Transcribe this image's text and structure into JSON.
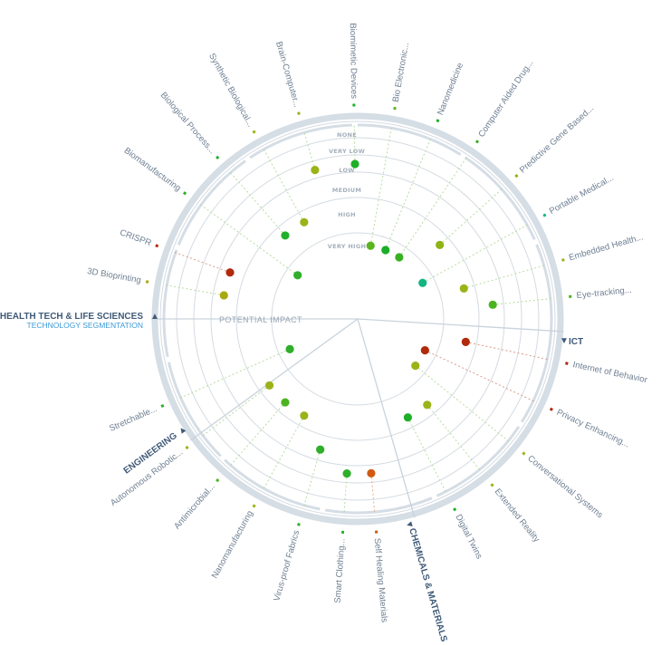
{
  "title": "",
  "center_label": "POTENTIAL IMPACT",
  "subtitle": "TECHNOLOGY SEGMENTATION",
  "rings": [
    "NONE",
    "VERY LOW",
    "LOW",
    "MEDIUM",
    "HIGH",
    "VERY HIGH"
  ],
  "sectors": [
    {
      "name": "HEALTH TECH & LIFE SCIENCES",
      "marker": "▲",
      "subtitle": "TECHNOLOGY SEGMENTATION"
    },
    {
      "name": "ICT",
      "marker": "▼"
    },
    {
      "name": "CHEMICALS & MATERIALS",
      "marker": "▼"
    },
    {
      "name": "ENGINEERING",
      "marker": "▲"
    }
  ],
  "colors": {
    "ring": "#d4dbe2",
    "outer_band": "#d5dde5",
    "label": "#6e7f92",
    "sector_label": "#3f5a78",
    "subtitle": "#3a9ad8"
  },
  "chart_data": {
    "type": "scatter",
    "scale": [
      "NONE",
      "VERY LOW",
      "LOW",
      "MEDIUM",
      "HIGH",
      "VERY HIGH"
    ],
    "technologies": [
      {
        "label": "3D Bioprinting",
        "sector": "HEALTH TECH & LIFE SCIENCES",
        "impact": "MEDIUM",
        "color": "#a8a910"
      },
      {
        "label": "CRISPR",
        "sector": "HEALTH TECH & LIFE SCIENCES",
        "impact": "MEDIUM",
        "color": "#b12a0c"
      },
      {
        "label": "Biomanufacturing",
        "sector": "HEALTH TECH & LIFE SCIENCES",
        "impact": "VERY HIGH",
        "color": "#2faf2a"
      },
      {
        "label": "Biological Process...",
        "sector": "HEALTH TECH & LIFE SCIENCES",
        "impact": "HIGH",
        "color": "#21b02c"
      },
      {
        "label": "Synthetic Biological...",
        "sector": "HEALTH TECH & LIFE SCIENCES",
        "impact": "HIGH",
        "color": "#9bb319"
      },
      {
        "label": "Brain-Computer...",
        "sector": "HEALTH TECH & LIFE SCIENCES",
        "impact": "LOW",
        "color": "#9bb319"
      },
      {
        "label": "Biomimetic Devices",
        "sector": "HEALTH TECH & LIFE SCIENCES",
        "impact": "LOW",
        "color": "#1fae28"
      },
      {
        "label": "Bio Electronic...",
        "sector": "HEALTH TECH & LIFE SCIENCES",
        "impact": "VERY HIGH",
        "color": "#5cb320"
      },
      {
        "label": "Nanomedicine",
        "sector": "HEALTH TECH & LIFE SCIENCES",
        "impact": "VERY HIGH",
        "color": "#1aae27"
      },
      {
        "label": "Computer Aided Drug...",
        "sector": "HEALTH TECH & LIFE SCIENCES",
        "impact": "VERY HIGH",
        "color": "#37b021"
      },
      {
        "label": "Predictive Gene Based...",
        "sector": "HEALTH TECH & LIFE SCIENCES",
        "impact": "HIGH",
        "color": "#8fb315"
      },
      {
        "label": "Portable Medical...",
        "sector": "HEALTH TECH & LIFE SCIENCES",
        "impact": "VERY HIGH",
        "color": "#14b582"
      },
      {
        "label": "Embedded Health...",
        "sector": "HEALTH TECH & LIFE SCIENCES",
        "impact": "HIGH",
        "color": "#9bb319"
      },
      {
        "label": "Eye-tracking...",
        "sector": "ICT",
        "impact": "MEDIUM",
        "color": "#4cb320"
      },
      {
        "label": "Internet of Behavior",
        "sector": "ICT",
        "impact": "HIGH",
        "color": "#b12a0c"
      },
      {
        "label": "Privacy Enhancing...",
        "sector": "ICT",
        "impact": "VERY HIGH",
        "color": "#b12a0c"
      },
      {
        "label": "Conversational Systems",
        "sector": "ICT",
        "impact": "VERY HIGH",
        "color": "#9bb319"
      },
      {
        "label": "Extended Reality",
        "sector": "ICT",
        "impact": "HIGH",
        "color": "#9bb319"
      },
      {
        "label": "Digital Twins",
        "sector": "ICT",
        "impact": "HIGH",
        "color": "#1fae28"
      },
      {
        "label": "Self Healing Materials",
        "sector": "CHEMICALS & MATERIALS",
        "impact": "LOW",
        "color": "#d15a12"
      },
      {
        "label": "Smart Clothing...",
        "sector": "CHEMICALS & MATERIALS",
        "impact": "LOW",
        "color": "#2faf2a"
      },
      {
        "label": "Virus-proof Fabrics",
        "sector": "CHEMICALS & MATERIALS",
        "impact": "MEDIUM",
        "color": "#2faf2a"
      },
      {
        "label": "Nanomanufacturing",
        "sector": "CHEMICALS & MATERIALS",
        "impact": "HIGH",
        "color": "#9bb319"
      },
      {
        "label": "Antimicrobial...",
        "sector": "CHEMICALS & MATERIALS",
        "impact": "HIGH",
        "color": "#4cb320"
      },
      {
        "label": "Autonomous Robotic...",
        "sector": "ENGINEERING",
        "impact": "HIGH",
        "color": "#9bb319"
      },
      {
        "label": "Stretchable...",
        "sector": "ENGINEERING",
        "impact": "VERY HIGH",
        "color": "#2faf2a"
      }
    ]
  }
}
